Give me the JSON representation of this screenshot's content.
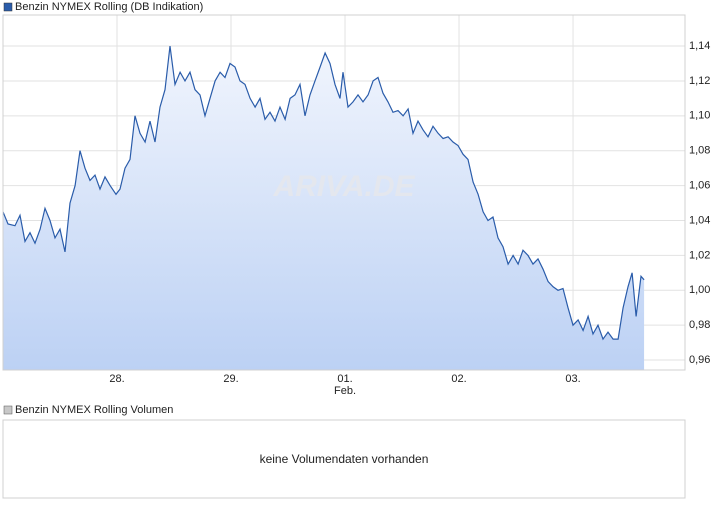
{
  "chart_data": {
    "type": "line",
    "watermark": "ARIVA.DE",
    "x": [
      0,
      0.044,
      0.105,
      0.149,
      0.193,
      0.237,
      0.281,
      0.325,
      0.368,
      0.412,
      0.456,
      0.5,
      0.544,
      0.588,
      0.632,
      0.675,
      0.719,
      0.763,
      0.807,
      0.851,
      0.895,
      0.939,
      0.991,
      1.026,
      1.07,
      1.114,
      1.158,
      1.202,
      1.246,
      1.289,
      1.333,
      1.377,
      1.421,
      1.465,
      1.509,
      1.553,
      1.596,
      1.64,
      1.684,
      1.728,
      1.772,
      1.816,
      1.86,
      1.904,
      1.947,
      1.991,
      2.035,
      2.079,
      2.123,
      2.167,
      2.211,
      2.254,
      2.298,
      2.342,
      2.386,
      2.43,
      2.474,
      2.518,
      2.561,
      2.605,
      2.649,
      2.693,
      2.737,
      2.781,
      2.825,
      2.868,
      2.912,
      2.956,
      2.982,
      3.026,
      3.07,
      3.114,
      3.158,
      3.202,
      3.246,
      3.289,
      3.333,
      3.377,
      3.421,
      3.465,
      3.509,
      3.553,
      3.596,
      3.64,
      3.684,
      3.728,
      3.772,
      3.816,
      3.86,
      3.904,
      3.947,
      3.991,
      4.035,
      4.079,
      4.123,
      4.167,
      4.211,
      4.254,
      4.298,
      4.342,
      4.386,
      4.43,
      4.474,
      4.518,
      4.561,
      4.605,
      4.649,
      4.693,
      4.737,
      4.781,
      4.825,
      4.868,
      4.912,
      4.956,
      5.0,
      5.044,
      5.088,
      5.132,
      5.175,
      5.219,
      5.263,
      5.307,
      5.351,
      5.395,
      5.439,
      5.482,
      5.518,
      5.553,
      5.596,
      5.623
    ],
    "series": [
      {
        "name": "Benzin NYMEX Rolling (DB Indikation)",
        "color": "#2a5caa",
        "values": [
          1.045,
          1.038,
          1.037,
          1.043,
          1.028,
          1.033,
          1.027,
          1.035,
          1.047,
          1.04,
          1.03,
          1.035,
          1.022,
          1.05,
          1.06,
          1.08,
          1.07,
          1.063,
          1.066,
          1.058,
          1.065,
          1.06,
          1.055,
          1.058,
          1.07,
          1.075,
          1.1,
          1.09,
          1.085,
          1.097,
          1.085,
          1.105,
          1.115,
          1.14,
          1.118,
          1.125,
          1.12,
          1.125,
          1.115,
          1.112,
          1.1,
          1.11,
          1.12,
          1.125,
          1.122,
          1.13,
          1.128,
          1.12,
          1.118,
          1.11,
          1.105,
          1.11,
          1.098,
          1.102,
          1.097,
          1.105,
          1.098,
          1.11,
          1.112,
          1.118,
          1.1,
          1.112,
          1.12,
          1.128,
          1.136,
          1.13,
          1.118,
          1.11,
          1.125,
          1.105,
          1.108,
          1.112,
          1.108,
          1.112,
          1.12,
          1.122,
          1.113,
          1.108,
          1.102,
          1.103,
          1.1,
          1.104,
          1.09,
          1.097,
          1.092,
          1.088,
          1.094,
          1.09,
          1.087,
          1.088,
          1.085,
          1.083,
          1.078,
          1.075,
          1.062,
          1.055,
          1.045,
          1.04,
          1.042,
          1.03,
          1.025,
          1.015,
          1.02,
          1.015,
          1.023,
          1.02,
          1.015,
          1.018,
          1.012,
          1.005,
          1.002,
          1.0,
          1.001,
          0.99,
          0.98,
          0.983,
          0.977,
          0.985,
          0.975,
          0.98,
          0.972,
          0.976,
          0.972,
          0.972,
          0.99,
          1.002,
          1.01,
          0.985,
          1.008,
          1.006
        ]
      }
    ],
    "xlim": [
      0,
      5.982
    ],
    "xticks": [
      {
        "value": 1,
        "label": "28."
      },
      {
        "value": 2,
        "label": "29."
      },
      {
        "value": 3,
        "label": "01."
      },
      {
        "value": 4,
        "label": "02."
      },
      {
        "value": 5,
        "label": "03."
      }
    ],
    "x_sublabel": {
      "value": 3,
      "label": "Feb."
    },
    "ylim": [
      0.9543,
      1.1578
    ],
    "yticks": [
      {
        "value": 0.96,
        "label": "0,96"
      },
      {
        "value": 0.98,
        "label": "0,98"
      },
      {
        "value": 1.0,
        "label": "1,00"
      },
      {
        "value": 1.02,
        "label": "1,02"
      },
      {
        "value": 1.04,
        "label": "1,04"
      },
      {
        "value": 1.06,
        "label": "1,06"
      },
      {
        "value": 1.08,
        "label": "1,08"
      },
      {
        "value": 1.1,
        "label": "1,10"
      },
      {
        "value": 1.12,
        "label": "1,12"
      },
      {
        "value": 1.14,
        "label": "1,14"
      }
    ],
    "grid": true,
    "volume_panel": {
      "legend": "Benzin NYMEX Rolling Volumen",
      "message": "keine Volumendaten vorhanden"
    }
  }
}
